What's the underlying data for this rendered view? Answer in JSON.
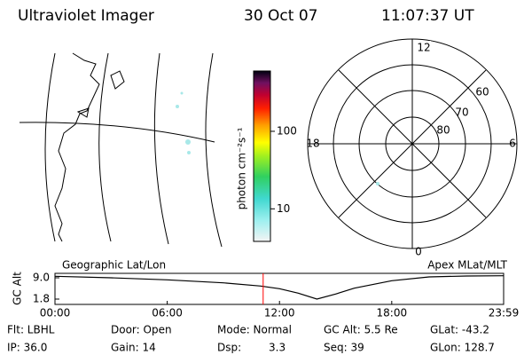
{
  "header": {
    "title": "Ultraviolet Imager",
    "date": "30 Oct 07",
    "time": "11:07:37 UT"
  },
  "colorbar": {
    "label": "photon cm⁻²s⁻¹",
    "ticks": [
      10,
      100
    ],
    "lim": [
      3.8,
      600
    ],
    "log": true
  },
  "polar": {
    "mlt_labels": [
      "12",
      "18",
      "6",
      "0"
    ],
    "lat_labels": [
      "60",
      "70",
      "80"
    ]
  },
  "panels": {
    "left": "Geographic Lat/Lon",
    "right": "Apex MLat/MLT"
  },
  "chart_data": {
    "type": "line",
    "ylabel": "GC Alt",
    "x": [
      0,
      3,
      6,
      9,
      11,
      12,
      13,
      14,
      15,
      16,
      18,
      20,
      22,
      23.98
    ],
    "series": [
      {
        "name": "GC Alt",
        "color": "#000000",
        "values": [
          9.5,
          9.0,
          8.3,
          7.3,
          6.2,
          5.3,
          3.8,
          1.8,
          3.5,
          5.5,
          8.0,
          9.3,
          9.6,
          9.7
        ]
      }
    ],
    "xlim": [
      0,
      23.98
    ],
    "ylim": [
      0,
      10.5
    ],
    "xticks": [
      {
        "value": 0,
        "label": "00:00"
      },
      {
        "value": 6,
        "label": "06:00"
      },
      {
        "value": 12,
        "label": "12:00"
      },
      {
        "value": 18,
        "label": "18:00"
      },
      {
        "value": 23.98,
        "label": "23:59"
      }
    ],
    "yticks": [
      {
        "value": 1.8,
        "label": "1.8"
      },
      {
        "value": 9.0,
        "label": "9.0"
      }
    ],
    "current_time": 11.127,
    "current_time_color": "#ff0000"
  },
  "footer": {
    "flt": "Flt: LBHL",
    "ip": "IP: 36.0",
    "door": "Door: Open",
    "gain": "Gain: 14",
    "mode": "Mode: Normal",
    "dsp": "Dsp:",
    "dsp_value": "3.3",
    "gc_alt": "GC Alt: 5.5 Re",
    "seq": "Seq: 39",
    "glat": "GLat: -43.2",
    "glon": "GLon: 128.7"
  }
}
